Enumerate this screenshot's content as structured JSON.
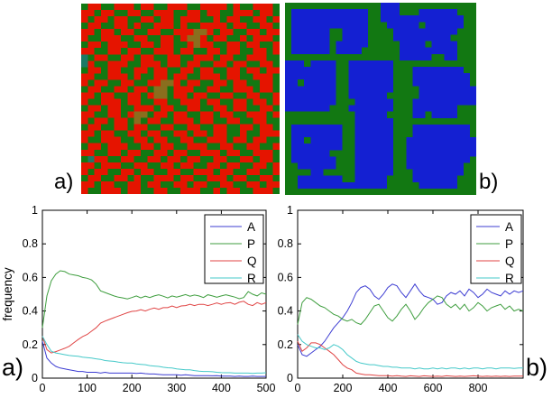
{
  "figure": {
    "lattice_a": {
      "label": "a)",
      "palette": {
        "R": "#e51400",
        "G": "#127812",
        "T": "#1c7a66",
        "O": "#8a6e1e"
      },
      "rows": [
        "GRRGGRRRGRRGGRRRGGRRRRGRGGRRRG",
        "RRGRRGGRRGGRRRGGRRGRRGGRRRGRRG",
        "RGRRGRRGGRRGRRGRRRGGRGRRGGRRGR",
        "GRRGGRRGRGGRRRGRGGRRRRGRRGGRRG",
        "RRGRRGRRGGRRGGRRROORGRRGGRRGRR",
        "RGGRRRGGRRGGRRGROORGRRGGRGRRRG",
        "GRRGRRRGGRRGRRGGRORRGGRRGRRGGR",
        "RRGGRRGRRGGRRRGRRGGRRGRRGGRRGR",
        "TGRRGGRRGRRGGRRGGRRRGRRGGRRRGG",
        "TRGGRRRGGRRRGRRGRRGGRRGRRGGRRG",
        "GRRGRRGGRRGRRGGRRGRRGGRRGRRGRR",
        "RRGGRRRGRGGRRGRRGGRRRGRRGGRRRG",
        "RGRRGGRRGGRROORGRRGGRRGRRGGRRG",
        "GRRGGRRGRRGOOGRRRGGRRGGRRRGRRG",
        "RRGRRGGRRGROOGRRGRRGGRRGGRRGGR",
        "RGGRRRGRRGGRRGGRRRGRRGGRRGRRGR",
        "GRRGRRGGRRRGRRGGRRGGRRGRRGGRRG",
        "RRGGRRGROOGRRGRRGGRRGRRGGRRRGR",
        "RGRRGRRGOGRRGGRRRGRRGGRRGGRRGG",
        "GRRGGRRGRRGGRRGGRRGGRRGGRRGRRG",
        "RRGRRGGRRGRRGGRRGRRGRRGGRGGRRR",
        "RGGRRRGGRRGRRGGRRGGRRRGRRGRRGG",
        "GRRGRRRGGRRGRRGGRRRGGRRGGRRGGR",
        "RRGGRRGRRGGRRGRRGGRRRGRRGGRRRG",
        "GTRRGGRRGGRRGRRGRRGGRRGGRRGRRG",
        "RRGRRRGGRRGGRRGRRGGRRGRRGGRRGR",
        "RGRRGGRRGRRGGRRGGRRRGRRGGRRGGR",
        "GRRGGRRGRGGRRRGRRGGRRRGRRGGRRG",
        "RRGRRGGRRGRRGGRRGRRGGRRGGRRGRR",
        "RGGRRRGRRGGRRGGRRRGGRGRRGGRRRG"
      ]
    },
    "lattice_b": {
      "label": "b)",
      "palette": {
        "B": "#1420d2",
        "G": "#127812"
      },
      "rows": [
        "GGGGGGGGGGGGGGGBBBGGGGGGGGGGGG",
        "GBBBBBBBBBBBBGGBBBGGGBBBBBBGGG",
        "GBBBBBBBBBBBBGGBBBBBBBBBBBBBGG",
        "GBBBBBBBBBBBBGGGBBBBBGBBBBBBGG",
        "GBBBBBBGGBBBBGGGGBBBBBBBBBBGGG",
        "GBBBBBBGGBBBBGGGGBBBBBBBBBGGGG",
        "GBBBBBBGBBBBBGGGGGBBBBGBBBBGGG",
        "GBBBBBBGBBBBGGGGGGBBBBBBBBBGGG",
        "GGGGGGGGGGGGGGGGGGBBBBBGGBBGGG",
        "BBBGBBBBGGBBBBBBBGGGGGGGGGGGGG",
        "BBBBBBBBGGBBBBBBBGGGBBBBBBBBGG",
        "BBBBBBBBGGBBBBBBBGGGBBBBBBBBBG",
        "BBGBBBBBGGBBBBBBBGGGBBBBBBBBBG",
        "BBBBBBBBGGBBBBBBBGGGGBBBBBBBBB",
        "BBBBBBBBGGBBBBBBGGGGGBBBBBBBBB",
        "BBBBBBBBGGGBBBBBBGGGBBBBBBBBBB",
        "BBBBBBBGGGBBBBBBBGGGBBBBBBBGGG",
        "GGGGGGGGGGGBBBBBGGGGBBGBBBBGGG",
        "GGGGGGGGGGGBBBBBBGGGGGGGGGGGGG",
        "GBBBBBBBBGGBBBBBBGGGBBBBBBBBBG",
        "GBBBBBBBBGGBBBBBBGGGBBBBBBBBBG",
        "GBBGBBBBBGGBBBBBBGGBBBBBBBBBBB",
        "GBBBBBBBBGGBBBBBBGGBBBBBBBBBBB",
        "GBBBBBBGGGGBBBBBBGGBBBBBBBBBBB",
        "GBBBBBBBGGGBBBBBBGGBBBBBBBBBBG",
        "GGBBBBBBGGGBBBBBBGGBBBBBBBBBGG",
        "GGGGBBGGGGGBBBBBBGGGBBBBBBBBGG",
        "GGBBBBBBBGGBBBBBGGGGBBBBBBBGGG",
        "GGBBBBBBBBBBBBBBGGGGGBBBBBBGGG",
        "GGGGGGGGGGGGGGGGGGGGGGGGGGGGGG"
      ]
    }
  },
  "chart_data": [
    {
      "type": "line",
      "panel_label": "a)",
      "ylabel": "frequency",
      "xlim": [
        0,
        500
      ],
      "ylim": [
        0,
        1
      ],
      "x_start": 0,
      "x_step": 10,
      "xtick_values": [
        0,
        100,
        200,
        300,
        400,
        500
      ],
      "xtick_labels": [
        "0",
        "100",
        "200",
        "300",
        "400",
        "500"
      ],
      "ytick_values": [
        0,
        0.2,
        0.4,
        0.6,
        0.8,
        1
      ],
      "ytick_labels": [
        "0",
        "0.2",
        "0.4",
        "0.6",
        "0.8",
        "1"
      ],
      "grid": "off",
      "legend_position": "top-right",
      "series": [
        {
          "name": "A",
          "color": "#3c3cd2",
          "values": [
            0.22,
            0.12,
            0.09,
            0.07,
            0.06,
            0.055,
            0.05,
            0.045,
            0.04,
            0.04,
            0.035,
            0.035,
            0.035,
            0.03,
            0.035,
            0.03,
            0.03,
            0.03,
            0.03,
            0.03,
            0.03,
            0.028,
            0.03,
            0.027,
            0.025,
            0.025,
            0.022,
            0.02,
            0.02,
            0.02,
            0.02,
            0.018,
            0.02,
            0.017,
            0.015,
            0.015,
            0.015,
            0.015,
            0.014,
            0.015,
            0.012,
            0.012,
            0.012,
            0.01,
            0.012,
            0.01,
            0.01,
            0.012,
            0.01,
            0.01,
            0.01
          ]
        },
        {
          "name": "P",
          "color": "#3f9e3f",
          "values": [
            0.3,
            0.49,
            0.58,
            0.62,
            0.64,
            0.635,
            0.62,
            0.615,
            0.61,
            0.6,
            0.595,
            0.585,
            0.56,
            0.52,
            0.51,
            0.5,
            0.49,
            0.482,
            0.478,
            0.472,
            0.48,
            0.49,
            0.478,
            0.488,
            0.48,
            0.49,
            0.497,
            0.488,
            0.478,
            0.49,
            0.483,
            0.49,
            0.498,
            0.488,
            0.495,
            0.49,
            0.48,
            0.497,
            0.49,
            0.482,
            0.49,
            0.497,
            0.49,
            0.483,
            0.473,
            0.48,
            0.515,
            0.5,
            0.49,
            0.508,
            0.5
          ]
        },
        {
          "name": "Q",
          "color": "#e04545",
          "values": [
            0.25,
            0.17,
            0.15,
            0.158,
            0.168,
            0.178,
            0.19,
            0.21,
            0.23,
            0.248,
            0.26,
            0.28,
            0.3,
            0.328,
            0.34,
            0.35,
            0.36,
            0.37,
            0.38,
            0.39,
            0.398,
            0.4,
            0.408,
            0.4,
            0.41,
            0.418,
            0.41,
            0.42,
            0.42,
            0.43,
            0.42,
            0.43,
            0.432,
            0.44,
            0.432,
            0.44,
            0.44,
            0.432,
            0.44,
            0.448,
            0.44,
            0.448,
            0.45,
            0.44,
            0.452,
            0.458,
            0.44,
            0.432,
            0.45,
            0.44,
            0.45
          ]
        },
        {
          "name": "R",
          "color": "#45c9c9",
          "values": [
            0.25,
            0.2,
            0.16,
            0.15,
            0.145,
            0.14,
            0.135,
            0.132,
            0.13,
            0.125,
            0.122,
            0.12,
            0.115,
            0.112,
            0.105,
            0.102,
            0.1,
            0.095,
            0.092,
            0.09,
            0.09,
            0.085,
            0.082,
            0.08,
            0.075,
            0.072,
            0.07,
            0.065,
            0.062,
            0.06,
            0.055,
            0.052,
            0.05,
            0.05,
            0.045,
            0.042,
            0.04,
            0.04,
            0.038,
            0.035,
            0.033,
            0.032,
            0.032,
            0.03,
            0.03,
            0.03,
            0.03,
            0.028,
            0.03,
            0.03,
            0.032
          ]
        }
      ]
    },
    {
      "type": "line",
      "panel_label": "b)",
      "ylabel": "",
      "xlim": [
        0,
        1000
      ],
      "ylim": [
        0,
        1
      ],
      "x_start": 0,
      "x_step": 20,
      "xtick_values": [
        0,
        200,
        400,
        600,
        800
      ],
      "xtick_labels": [
        "0",
        "200",
        "400",
        "600",
        "800"
      ],
      "ytick_values": [
        0,
        0.2,
        0.4,
        0.6,
        0.8,
        1
      ],
      "ytick_labels": [
        "0",
        "0.2",
        "0.4",
        "0.6",
        "0.8",
        "1"
      ],
      "grid": "off",
      "legend_position": "top-right",
      "series": [
        {
          "name": "A",
          "color": "#3c3cd2",
          "values": [
            0.2,
            0.14,
            0.13,
            0.15,
            0.17,
            0.19,
            0.22,
            0.26,
            0.3,
            0.33,
            0.36,
            0.4,
            0.45,
            0.51,
            0.54,
            0.55,
            0.53,
            0.49,
            0.47,
            0.5,
            0.54,
            0.56,
            0.55,
            0.51,
            0.48,
            0.52,
            0.56,
            0.52,
            0.49,
            0.48,
            0.47,
            0.44,
            0.45,
            0.49,
            0.51,
            0.5,
            0.52,
            0.49,
            0.53,
            0.51,
            0.48,
            0.5,
            0.53,
            0.51,
            0.5,
            0.49,
            0.52,
            0.5,
            0.52,
            0.51,
            0.52
          ]
        },
        {
          "name": "P",
          "color": "#3f9e3f",
          "values": [
            0.32,
            0.45,
            0.48,
            0.47,
            0.45,
            0.43,
            0.42,
            0.4,
            0.38,
            0.37,
            0.35,
            0.34,
            0.35,
            0.33,
            0.32,
            0.35,
            0.39,
            0.43,
            0.44,
            0.4,
            0.36,
            0.34,
            0.37,
            0.41,
            0.44,
            0.4,
            0.35,
            0.38,
            0.42,
            0.45,
            0.47,
            0.49,
            0.48,
            0.44,
            0.42,
            0.44,
            0.41,
            0.44,
            0.4,
            0.42,
            0.45,
            0.43,
            0.4,
            0.42,
            0.43,
            0.44,
            0.41,
            0.43,
            0.4,
            0.41,
            0.4
          ]
        },
        {
          "name": "Q",
          "color": "#e04545",
          "values": [
            0.22,
            0.16,
            0.18,
            0.21,
            0.21,
            0.2,
            0.18,
            0.16,
            0.14,
            0.11,
            0.08,
            0.06,
            0.05,
            0.03,
            0.025,
            0.02,
            0.02,
            0.018,
            0.015,
            0.015,
            0.015,
            0.012,
            0.015,
            0.012,
            0.01,
            0.014,
            0.012,
            0.01,
            0.014,
            0.012,
            0.01,
            0.012,
            0.01,
            0.014,
            0.012,
            0.01,
            0.012,
            0.01,
            0.012,
            0.014,
            0.012,
            0.01,
            0.012,
            0.01,
            0.012,
            0.01,
            0.012,
            0.01,
            0.012,
            0.012,
            0.012
          ]
        },
        {
          "name": "R",
          "color": "#45c9c9",
          "values": [
            0.26,
            0.22,
            0.2,
            0.19,
            0.18,
            0.18,
            0.17,
            0.18,
            0.2,
            0.19,
            0.17,
            0.14,
            0.12,
            0.1,
            0.09,
            0.085,
            0.08,
            0.08,
            0.075,
            0.07,
            0.07,
            0.065,
            0.065,
            0.06,
            0.06,
            0.06,
            0.055,
            0.06,
            0.055,
            0.055,
            0.06,
            0.055,
            0.06,
            0.055,
            0.06,
            0.06,
            0.055,
            0.06,
            0.055,
            0.06,
            0.06,
            0.055,
            0.06,
            0.06,
            0.055,
            0.06,
            0.06,
            0.06,
            0.058,
            0.06,
            0.06
          ]
        }
      ]
    }
  ]
}
